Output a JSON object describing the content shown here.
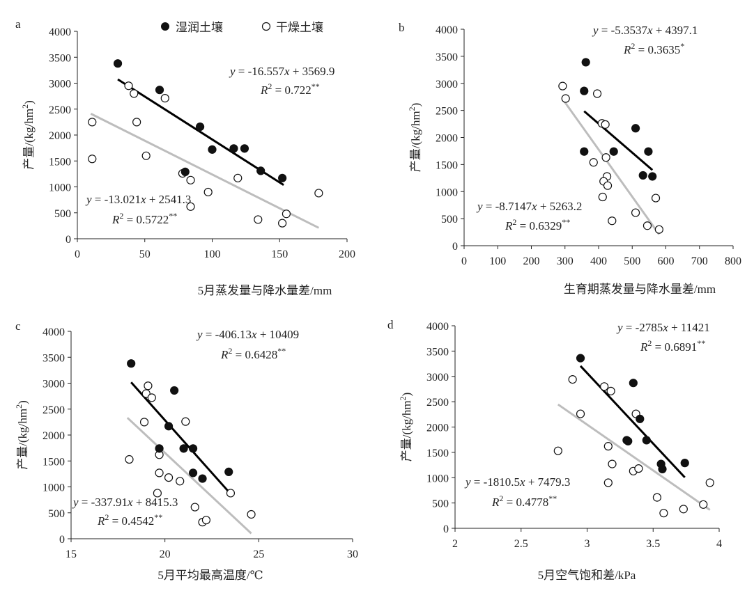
{
  "legend": {
    "wet": "湿润土壤",
    "dry": "干燥土壤"
  },
  "colors": {
    "wet_fill": "#111111",
    "dry_fill": "#ffffff",
    "point_stroke": "#111111",
    "wet_line": "#000000",
    "dry_line": "#bdbdbd",
    "axis": "#222222"
  },
  "chart_data": [
    {
      "panel": "a",
      "type": "scatter",
      "xlabel": "5月蒸发量与降水量差/mm",
      "ylabel": "产量/(kg/hm2)",
      "xlim": [
        0,
        200
      ],
      "ylim": [
        0,
        4000
      ],
      "xticks": [
        0,
        50,
        100,
        150,
        200
      ],
      "yticks": [
        0,
        500,
        1000,
        1500,
        2000,
        2500,
        3000,
        3500,
        4000
      ],
      "series": [
        {
          "name": "湿润土壤",
          "points": [
            [
              30,
              3380
            ],
            [
              61,
              2870
            ],
            [
              91,
              2160
            ],
            [
              100,
              1720
            ],
            [
              116,
              1740
            ],
            [
              124,
              1740
            ],
            [
              136,
              1310
            ],
            [
              152,
              1170
            ],
            [
              80,
              1290
            ]
          ],
          "fit": {
            "x": [
              30,
              153
            ],
            "eq": "y = -16.557x + 3569.9",
            "r2": "R2 = 0.722**"
          }
        },
        {
          "name": "干燥土壤",
          "points": [
            [
              11,
              2250
            ],
            [
              11,
              1540
            ],
            [
              38,
              2950
            ],
            [
              42,
              2800
            ],
            [
              44,
              2250
            ],
            [
              51,
              1600
            ],
            [
              65,
              2710
            ],
            [
              78,
              1260
            ],
            [
              84,
              1130
            ],
            [
              84,
              620
            ],
            [
              97,
              900
            ],
            [
              119,
              1170
            ],
            [
              134,
              370
            ],
            [
              152,
              300
            ],
            [
              155,
              480
            ],
            [
              179,
              880
            ]
          ],
          "fit": {
            "x": [
              10,
              179
            ],
            "eq": "y = -13.021x + 2541.3",
            "r2": "R2 = 0.5722**"
          }
        }
      ]
    },
    {
      "panel": "b",
      "type": "scatter",
      "xlabel": "生育期蒸发量与降水量差/mm",
      "ylabel": "产量/(kg/hm2)",
      "xlim": [
        0,
        800
      ],
      "ylim": [
        0,
        4000
      ],
      "xticks": [
        0,
        100,
        200,
        300,
        400,
        500,
        600,
        700,
        800
      ],
      "yticks": [
        0,
        500,
        1000,
        1500,
        2000,
        2500,
        3000,
        3500,
        4000
      ],
      "series": [
        {
          "name": "湿润土壤",
          "points": [
            [
              362,
              3390
            ],
            [
              357,
              2860
            ],
            [
              357,
              1740
            ],
            [
              445,
              1740
            ],
            [
              510,
              2170
            ],
            [
              532,
              1300
            ],
            [
              548,
              1740
            ],
            [
              560,
              1280
            ]
          ],
          "fit": {
            "x": [
              357,
              560
            ],
            "eq": "y = -5.3537x + 4397.1",
            "r2": "R2 = 0.3635*"
          }
        },
        {
          "name": "干燥土壤",
          "points": [
            [
              293,
              2950
            ],
            [
              302,
              2720
            ],
            [
              396,
              2810
            ],
            [
              410,
              2260
            ],
            [
              420,
              2240
            ],
            [
              422,
              1630
            ],
            [
              385,
              1540
            ],
            [
              425,
              1280
            ],
            [
              415,
              1190
            ],
            [
              427,
              1110
            ],
            [
              412,
              900
            ],
            [
              440,
              460
            ],
            [
              510,
              610
            ],
            [
              570,
              880
            ],
            [
              545,
              370
            ],
            [
              580,
              300
            ]
          ],
          "fit": {
            "x": [
              293,
              580
            ],
            "eq": "y = -8.7147x + 5263.2",
            "r2": "R2 = 0.6329**"
          }
        }
      ]
    },
    {
      "panel": "c",
      "type": "scatter",
      "xlabel": "5月平均最高温度/℃",
      "ylabel": "产量/(kg/hm2)",
      "xlim": [
        15,
        30
      ],
      "ylim": [
        0,
        4000
      ],
      "xticks": [
        15,
        20,
        25,
        30
      ],
      "yticks": [
        0,
        500,
        1000,
        1500,
        2000,
        2500,
        3000,
        3500,
        4000
      ],
      "series": [
        {
          "name": "湿润土壤",
          "points": [
            [
              18.2,
              3380
            ],
            [
              20.5,
              2860
            ],
            [
              20.2,
              2170
            ],
            [
              19.7,
              1740
            ],
            [
              21.0,
              1740
            ],
            [
              21.5,
              1740
            ],
            [
              21.5,
              1270
            ],
            [
              22.0,
              1160
            ],
            [
              23.4,
              1290
            ]
          ],
          "fit": {
            "x": [
              18.2,
              23.5
            ],
            "eq": "y = -406.13x + 10409",
            "r2": "R2 = 0.6428**"
          }
        },
        {
          "name": "干燥土壤",
          "points": [
            [
              19.1,
              2950
            ],
            [
              19.0,
              2800
            ],
            [
              19.3,
              2720
            ],
            [
              18.9,
              2250
            ],
            [
              21.1,
              2260
            ],
            [
              18.1,
              1530
            ],
            [
              19.7,
              1620
            ],
            [
              19.7,
              1270
            ],
            [
              20.2,
              1180
            ],
            [
              20.8,
              1110
            ],
            [
              19.6,
              880
            ],
            [
              21.6,
              610
            ],
            [
              22.0,
              320
            ],
            [
              22.2,
              360
            ],
            [
              23.5,
              880
            ],
            [
              24.6,
              470
            ]
          ],
          "fit": {
            "x": [
              18.0,
              24.6
            ],
            "eq": "y = -337.91x + 8415.3",
            "r2": "R2 = 0.4542**"
          }
        }
      ]
    },
    {
      "panel": "d",
      "type": "scatter",
      "xlabel": "5月空气饱和差/kPa",
      "ylabel": "产量/(kg/hm2)",
      "xlim": [
        2,
        4
      ],
      "ylim": [
        0,
        4000
      ],
      "xticks": [
        2,
        2.5,
        3,
        3.5,
        4
      ],
      "yticks": [
        0,
        500,
        1000,
        1500,
        2000,
        2500,
        3000,
        3500,
        4000
      ],
      "series": [
        {
          "name": "湿润土壤",
          "points": [
            [
              2.95,
              3360
            ],
            [
              3.35,
              2870
            ],
            [
              3.4,
              2160
            ],
            [
              3.3,
              1740
            ],
            [
              3.31,
              1720
            ],
            [
              3.45,
              1740
            ],
            [
              3.56,
              1270
            ],
            [
              3.57,
              1170
            ],
            [
              3.74,
              1290
            ]
          ],
          "fit": {
            "x": [
              2.95,
              3.74
            ],
            "eq": "y = -2785x + 11421",
            "r2": "R2 = 0.6891**"
          }
        },
        {
          "name": "干燥土壤",
          "points": [
            [
              2.89,
              2940
            ],
            [
              2.95,
              2260
            ],
            [
              3.13,
              2800
            ],
            [
              3.18,
              2710
            ],
            [
              3.37,
              2260
            ],
            [
              2.78,
              1530
            ],
            [
              3.16,
              1620
            ],
            [
              3.19,
              1270
            ],
            [
              3.35,
              1130
            ],
            [
              3.39,
              1180
            ],
            [
              3.16,
              900
            ],
            [
              3.53,
              610
            ],
            [
              3.58,
              300
            ],
            [
              3.73,
              380
            ],
            [
              3.88,
              470
            ],
            [
              3.93,
              900
            ]
          ],
          "fit": {
            "x": [
              2.78,
              3.93
            ],
            "eq": "y = -1810.5x + 7479.3",
            "r2": "R2 = 0.4778**"
          }
        }
      ]
    }
  ]
}
